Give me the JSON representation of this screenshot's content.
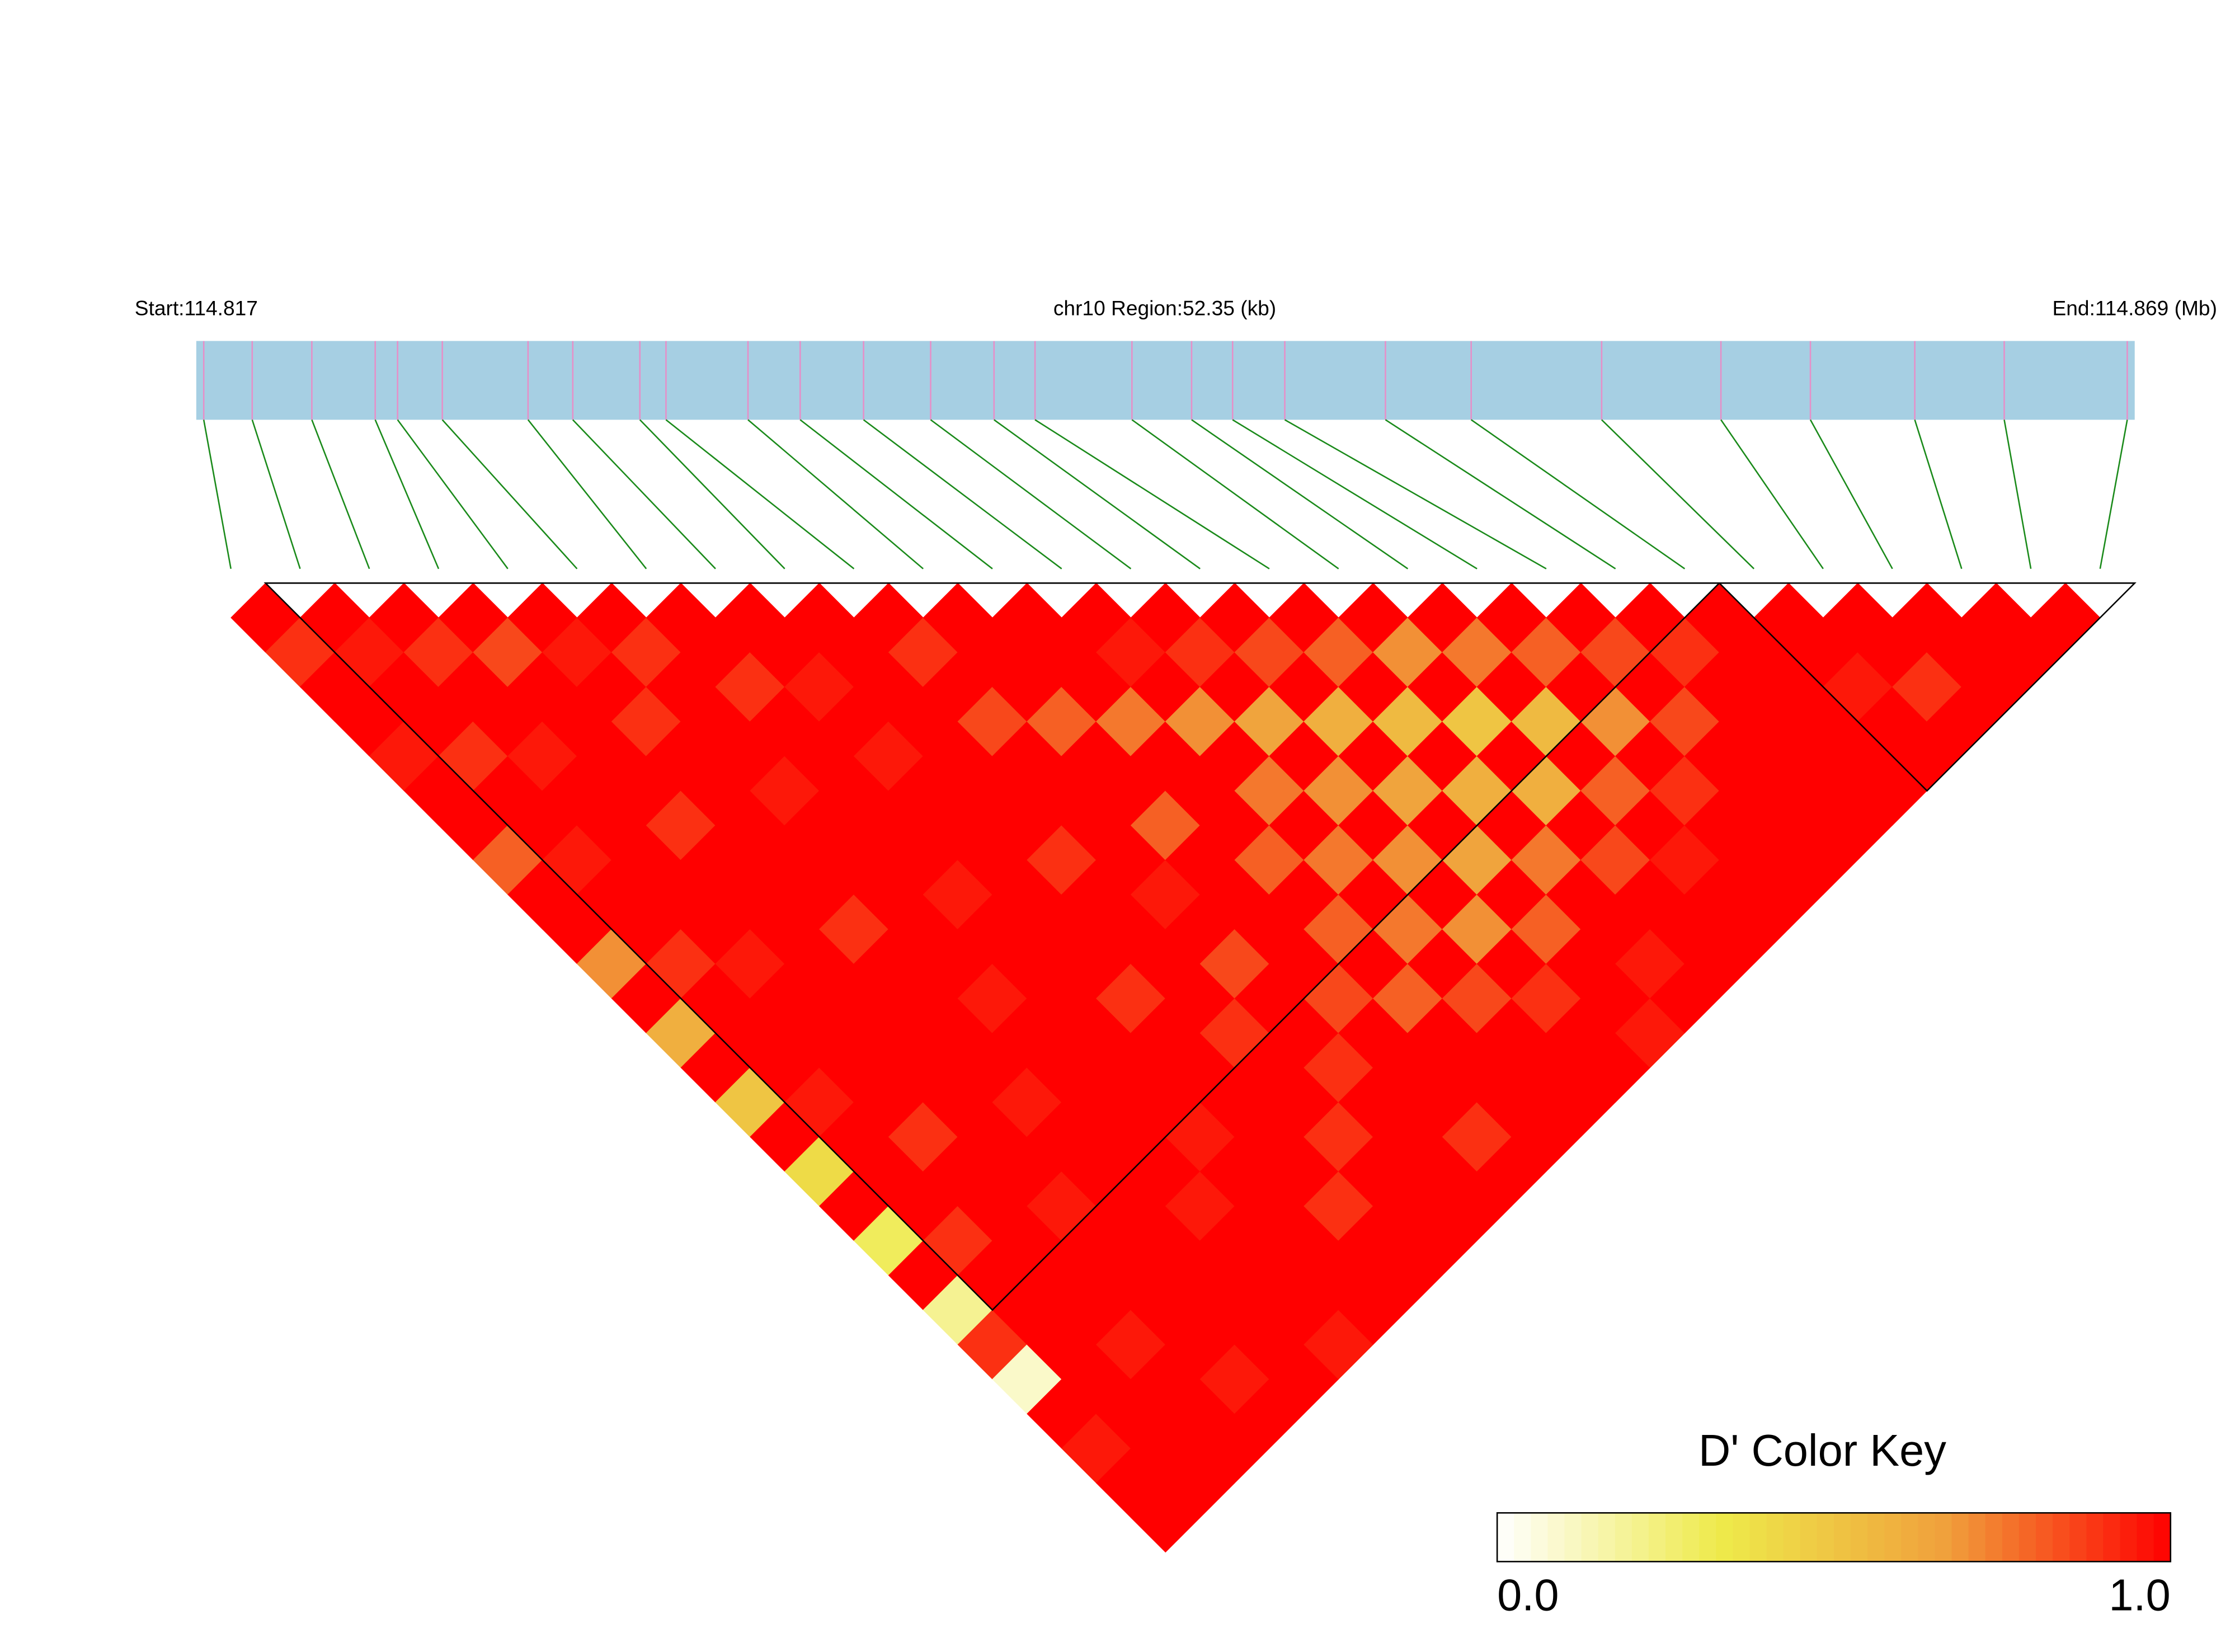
{
  "chart_data": {
    "type": "ld-heatmap",
    "start_label": "Start:114.817",
    "region_label": "chr10 Region:52.35 (kb)",
    "end_label": "End:114.869 (Mb)",
    "xlim": [
      114.817,
      114.869
    ],
    "snp_positions": [
      114.8172,
      114.8185,
      114.8201,
      114.8218,
      114.8224,
      114.8236,
      114.8259,
      114.8271,
      114.8289,
      114.8296,
      114.8318,
      114.8332,
      114.8349,
      114.8367,
      114.8384,
      114.8395,
      114.8421,
      114.8437,
      114.8448,
      114.8462,
      114.8489,
      114.8512,
      114.8547,
      114.8579,
      114.8603,
      114.8631,
      114.8655,
      114.8688
    ],
    "dprime": [
      [
        1
      ],
      [
        0.9,
        1
      ],
      [
        1,
        0.95,
        1
      ],
      [
        1,
        1,
        0.9,
        1
      ],
      [
        0.95,
        1,
        1,
        0.85,
        1
      ],
      [
        1,
        0.9,
        1,
        1,
        0.95,
        1
      ],
      [
        1,
        1,
        0.95,
        1,
        1,
        0.9,
        1
      ],
      [
        0.8,
        1,
        1,
        1,
        0.9,
        1,
        1,
        1
      ],
      [
        1,
        0.95,
        1,
        1,
        1,
        1,
        0.9,
        1,
        1
      ],
      [
        1,
        1,
        1,
        0.9,
        1,
        1,
        1,
        0.95,
        1,
        1
      ],
      [
        0.7,
        1,
        1,
        1,
        1,
        0.95,
        1,
        1,
        1,
        0.9,
        1
      ],
      [
        1,
        0.9,
        1,
        1,
        1,
        1,
        1,
        0.95,
        1,
        1,
        1,
        1
      ],
      [
        0.6,
        1,
        0.95,
        1,
        1,
        1,
        1,
        1,
        1,
        0.85,
        1,
        1,
        1
      ],
      [
        1,
        1,
        1,
        1,
        0.9,
        1,
        1,
        1,
        1,
        1,
        0.8,
        1,
        0.95,
        1
      ],
      [
        0.5,
        1,
        1,
        1,
        1,
        1,
        0.95,
        1,
        1,
        1,
        1,
        0.75,
        1,
        0.9,
        1
      ],
      [
        1,
        0.95,
        1,
        1,
        1,
        1,
        1,
        1,
        0.9,
        1,
        1,
        1,
        0.7,
        1,
        0.85,
        1
      ],
      [
        0.4,
        1,
        1,
        1,
        1,
        0.95,
        1,
        1,
        1,
        1,
        0.8,
        1,
        1,
        0.65,
        1,
        0.8,
        1
      ],
      [
        1,
        1,
        0.9,
        1,
        1,
        1,
        1,
        1,
        1,
        0.95,
        1,
        1,
        0.75,
        1,
        0.6,
        1,
        0.7,
        1
      ],
      [
        0.3,
        1,
        1,
        1,
        0.95,
        1,
        1,
        0.9,
        1,
        1,
        1,
        0.8,
        1,
        0.7,
        1,
        0.55,
        1,
        0.75,
        1
      ],
      [
        1,
        0.9,
        1,
        1,
        1,
        1,
        1,
        1,
        1,
        0.85,
        1,
        1,
        0.75,
        1,
        0.65,
        1,
        0.5,
        1,
        0.8,
        1
      ],
      [
        0.2,
        1,
        1,
        0.95,
        1,
        1,
        1,
        1,
        0.9,
        1,
        1,
        0.8,
        1,
        0.7,
        1,
        0.6,
        1,
        0.55,
        1,
        0.85,
        1
      ],
      [
        0.9,
        1,
        1,
        1,
        1,
        1,
        0.95,
        1,
        1,
        1,
        0.85,
        1,
        0.75,
        1,
        0.65,
        1,
        0.6,
        1,
        0.7,
        1,
        0.9,
        1
      ],
      [
        0.1,
        1,
        1,
        1,
        1,
        0.95,
        1,
        1,
        1,
        0.9,
        1,
        0.8,
        1,
        0.7,
        1,
        0.75,
        1,
        0.8,
        1,
        0.85,
        1,
        1,
        1
      ],
      [
        1,
        1,
        0.95,
        1,
        1,
        1,
        1,
        1,
        0.9,
        1,
        1,
        1,
        0.85,
        1,
        0.8,
        1,
        0.85,
        1,
        0.9,
        1,
        1,
        1,
        1,
        1
      ],
      [
        0.95,
        1,
        1,
        1,
        1,
        1,
        1,
        0.9,
        1,
        1,
        1,
        1,
        1,
        0.9,
        1,
        1,
        1,
        0.95,
        1,
        1,
        1,
        1,
        0.95,
        1,
        1
      ],
      [
        1,
        1,
        1,
        0.95,
        1,
        1,
        1,
        1,
        1,
        1,
        0.9,
        1,
        1,
        1,
        1,
        0.95,
        1,
        1,
        1,
        1,
        1,
        1,
        1,
        0.9,
        1,
        1
      ],
      [
        1,
        1,
        1,
        1,
        1,
        0.95,
        1,
        1,
        1,
        1,
        1,
        1,
        1,
        1,
        0.95,
        1,
        1,
        1,
        1,
        1,
        1,
        1,
        1,
        1,
        1,
        1,
        1
      ]
    ],
    "blocks": [
      [
        1,
        21
      ],
      [
        22,
        27
      ]
    ],
    "track_color": "#a6cfe3",
    "snp_tick_color": "#e68fc8",
    "connector_color": "#1a8a1a",
    "colorscale": [
      "#ffffff",
      "#eeea4a",
      "#f0a03c",
      "#ff0000"
    ],
    "colorkey_title": "D' Color Key",
    "colorkey_lim": [
      0,
      1
    ],
    "colorkey_ticks": [
      {
        "value": 0,
        "label": "0.0"
      },
      {
        "value": 1,
        "label": "1.0"
      }
    ]
  }
}
